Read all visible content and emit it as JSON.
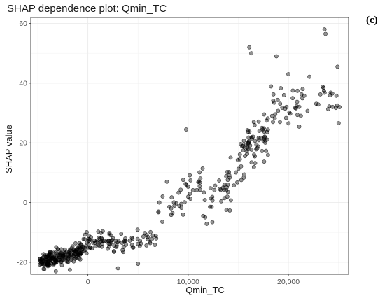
{
  "panel_label": "(c)",
  "chart_data": {
    "type": "scatter",
    "title": "SHAP dependence plot: Qmin_TC",
    "xlabel": "Qmin_TC",
    "ylabel": "SHAP value",
    "xlim": [
      -5700,
      26000
    ],
    "ylim": [
      -24,
      62
    ],
    "xticks": [
      0,
      10000,
      20000
    ],
    "xtick_labels": [
      "0",
      "10,000",
      "20,000"
    ],
    "yticks": [
      -20,
      0,
      20,
      40,
      60
    ],
    "ytick_labels": [
      "-20",
      "0",
      "20",
      "40",
      "60"
    ],
    "grid": true,
    "legend": "none",
    "point_color": "#000000",
    "clusters": [
      {
        "x_range": [
          -4800,
          -500
        ],
        "y_center": -18,
        "spread": 2.8,
        "count": 185,
        "slope": 0.0008
      },
      {
        "x_range": [
          -500,
          2500
        ],
        "y_center": -13,
        "spread": 3.2,
        "count": 55,
        "slope": 0.0006
      },
      {
        "x_range": [
          2500,
          7000
        ],
        "y_center": -13,
        "spread": 3.5,
        "count": 45,
        "slope": 0.0003
      },
      {
        "x_range": [
          7000,
          11500
        ],
        "y_center": 2,
        "spread": 6.5,
        "count": 40,
        "slope": 0.0025
      },
      {
        "x_range": [
          11500,
          15000
        ],
        "y_center": 4,
        "spread": 7,
        "count": 40,
        "slope": 0.0035
      },
      {
        "x_range": [
          15000,
          18000
        ],
        "y_center": 20,
        "spread": 8.5,
        "count": 70,
        "slope": 0.003
      },
      {
        "x_range": [
          18000,
          25200
        ],
        "y_center": 33,
        "spread": 6.5,
        "count": 55,
        "slope": 0.0006
      }
    ],
    "outliers": [
      {
        "x": 23600,
        "y": 58
      },
      {
        "x": 23700,
        "y": 56.5
      },
      {
        "x": 16100,
        "y": 52
      },
      {
        "x": 16300,
        "y": 50
      },
      {
        "x": 18800,
        "y": 49
      },
      {
        "x": 24900,
        "y": 45.5
      },
      {
        "x": 20000,
        "y": 43
      },
      {
        "x": 25100,
        "y": 32
      },
      {
        "x": 9800,
        "y": 24.5
      },
      {
        "x": -3200,
        "y": -23
      },
      {
        "x": -1800,
        "y": -22.5
      },
      {
        "x": 3000,
        "y": -22
      },
      {
        "x": 5000,
        "y": -20.5
      },
      {
        "x": 11500,
        "y": -4.5
      }
    ]
  }
}
